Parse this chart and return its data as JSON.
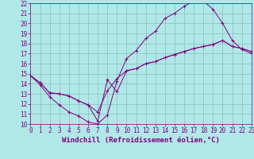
{
  "background_color": "#b0e8e8",
  "grid_color": "#8cbcbc",
  "line_color": "#800080",
  "xlabel": "Windchill (Refroidissement éolien,°C)",
  "xlabel_fontsize": 6.5,
  "tick_fontsize": 5.5,
  "xlim": [
    0,
    23
  ],
  "ylim": [
    10,
    22
  ],
  "xticks": [
    0,
    1,
    2,
    3,
    4,
    5,
    6,
    7,
    8,
    9,
    10,
    11,
    12,
    13,
    14,
    15,
    16,
    17,
    18,
    19,
    20,
    21,
    22,
    23
  ],
  "yticks": [
    10,
    11,
    12,
    13,
    14,
    15,
    16,
    17,
    18,
    19,
    20,
    21,
    22
  ],
  "curve1_x": [
    0,
    1,
    2,
    3,
    4,
    5,
    6,
    7,
    8,
    9,
    10,
    11,
    12,
    13,
    14,
    15,
    16,
    17,
    18,
    19,
    20,
    21,
    22,
    23
  ],
  "curve1_y": [
    14.8,
    13.9,
    12.7,
    11.9,
    11.2,
    10.8,
    10.2,
    10.0,
    10.9,
    14.3,
    16.5,
    17.3,
    18.5,
    19.2,
    20.5,
    21.0,
    21.7,
    22.2,
    22.2,
    21.4,
    20.0,
    18.3,
    17.4,
    17.0
  ],
  "curve2_x": [
    0,
    1,
    2,
    3,
    4,
    5,
    6,
    7,
    8,
    9,
    10,
    11,
    12,
    13,
    14,
    15,
    16,
    17,
    18,
    19,
    20,
    21,
    22,
    23
  ],
  "curve2_y": [
    14.8,
    14.1,
    13.1,
    13.0,
    12.8,
    12.3,
    11.9,
    11.2,
    13.3,
    14.5,
    15.3,
    15.5,
    16.0,
    16.2,
    16.6,
    16.9,
    17.2,
    17.5,
    17.7,
    17.9,
    18.3,
    17.7,
    17.5,
    17.2
  ],
  "curve3_x": [
    0,
    1,
    2,
    3,
    4,
    5,
    6,
    7,
    8,
    9,
    10,
    11,
    12,
    13,
    14,
    15,
    16,
    17,
    18,
    19,
    20,
    21,
    22,
    23
  ],
  "curve3_y": [
    14.8,
    14.1,
    13.1,
    13.0,
    12.8,
    12.3,
    11.9,
    10.3,
    14.4,
    13.2,
    15.3,
    15.5,
    16.0,
    16.2,
    16.6,
    16.9,
    17.2,
    17.5,
    17.7,
    17.9,
    18.3,
    17.7,
    17.5,
    17.2
  ]
}
